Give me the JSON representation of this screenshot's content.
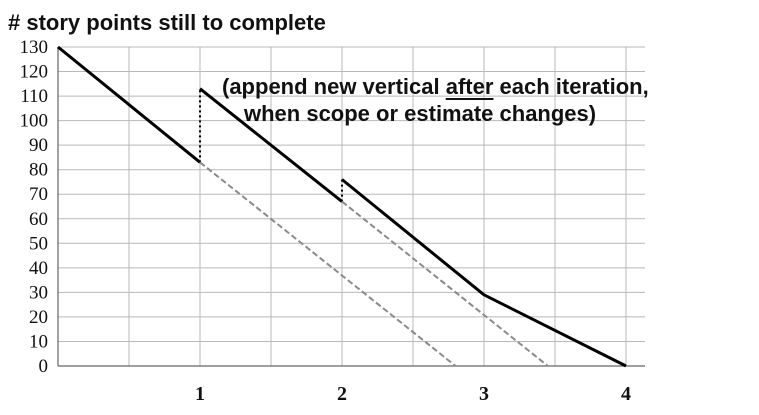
{
  "chart_data": {
    "type": "line",
    "title": "# story points still to complete",
    "annotation_line1": "(append new vertical after each iteration,",
    "annotation_line2": "when scope or estimate changes)",
    "annotation_underlined_word": "after",
    "xlabel": "",
    "ylabel": "",
    "xlim": [
      0,
      4.2
    ],
    "ylim": [
      0,
      130
    ],
    "yticks": [
      0,
      10,
      20,
      30,
      40,
      50,
      60,
      70,
      80,
      90,
      100,
      110,
      120,
      130
    ],
    "xticks": [
      1,
      2,
      3,
      4
    ],
    "grid": true,
    "series": [
      {
        "style": "solid",
        "color": "#000000",
        "points": [
          [
            0,
            130
          ],
          [
            1,
            83
          ]
        ]
      },
      {
        "style": "solid",
        "color": "#000000",
        "points": [
          [
            1,
            113
          ],
          [
            2,
            67
          ]
        ]
      },
      {
        "style": "solid",
        "color": "#000000",
        "points": [
          [
            2,
            76
          ],
          [
            3,
            29
          ],
          [
            4,
            0
          ]
        ]
      },
      {
        "style": "dotted-vertical",
        "color": "#000000",
        "points": [
          [
            1,
            83
          ],
          [
            1,
            113
          ]
        ]
      },
      {
        "style": "dotted-vertical",
        "color": "#000000",
        "points": [
          [
            2,
            67
          ],
          [
            2,
            76
          ]
        ]
      },
      {
        "style": "dashed-projection",
        "color": "#8a8a8a",
        "points": [
          [
            1,
            83
          ],
          [
            2.8,
            0
          ]
        ]
      },
      {
        "style": "dashed-projection",
        "color": "#8a8a8a",
        "points": [
          [
            2,
            67
          ],
          [
            3.45,
            0
          ]
        ]
      }
    ]
  }
}
